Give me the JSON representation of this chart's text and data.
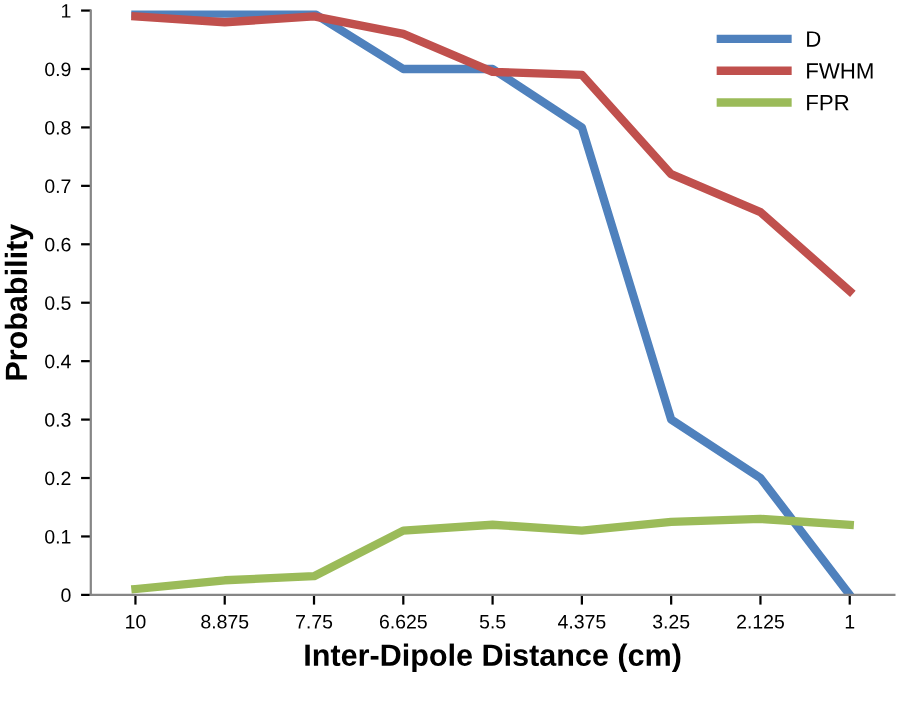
{
  "chart_data": {
    "type": "line",
    "xlabel": "Inter-Dipole Distance (cm)",
    "ylabel": "Probability",
    "categories": [
      "10",
      "8.875",
      "7.75",
      "6.625",
      "5.5",
      "4.375",
      "3.25",
      "2.125",
      "1"
    ],
    "series": [
      {
        "name": "D",
        "color": "#4f81bd",
        "values": [
          0.995,
          0.995,
          0.995,
          0.9,
          0.9,
          0.8,
          0.3,
          0.2,
          0.0
        ]
      },
      {
        "name": "FWHM",
        "color": "#c0504d",
        "values": [
          0.99,
          0.98,
          0.99,
          0.96,
          0.895,
          0.89,
          0.72,
          0.655,
          0.52
        ]
      },
      {
        "name": "FPR",
        "color": "#9bbb59",
        "values": [
          0.01,
          0.025,
          0.032,
          0.11,
          0.12,
          0.11,
          0.125,
          0.13,
          0.12
        ]
      }
    ],
    "ylim": [
      0,
      1
    ],
    "yticks": [
      0,
      0.1,
      0.2,
      0.3,
      0.4,
      0.5,
      0.6,
      0.7,
      0.8,
      0.9,
      1
    ],
    "grid": false,
    "legend": "top right",
    "marker": "none",
    "line_style": "solid"
  }
}
